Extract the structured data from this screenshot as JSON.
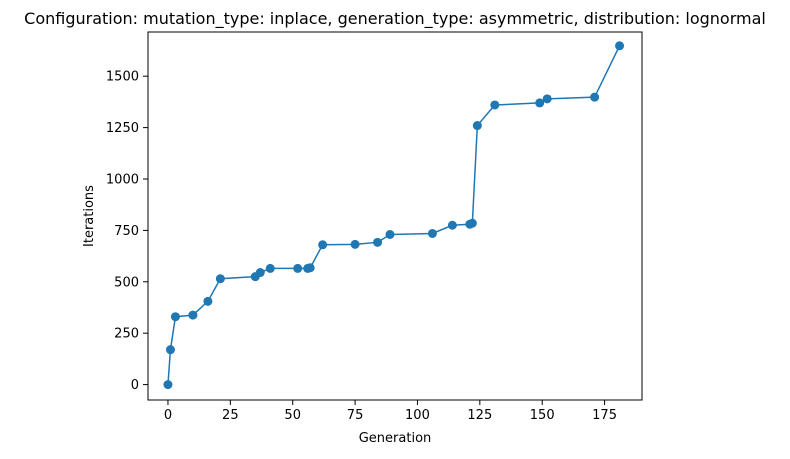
{
  "chart_data": {
    "type": "line",
    "title": "Configuration: mutation_type: inplace, generation_type: asymmetric, distribution: lognormal",
    "xlabel": "Generation",
    "ylabel": "Iterations",
    "xlim": [
      -8,
      190
    ],
    "ylim": [
      -75,
      1715
    ],
    "x_ticks": [
      0,
      25,
      50,
      75,
      100,
      125,
      150,
      175
    ],
    "y_ticks": [
      0,
      250,
      500,
      750,
      1000,
      1250,
      1500
    ],
    "grid": false,
    "legend": "none",
    "series": [
      {
        "color": "#1f77b4",
        "marker": "circle",
        "x": [
          0,
          1,
          3,
          10,
          16,
          21,
          35,
          37,
          41,
          52,
          56,
          57,
          62,
          75,
          84,
          89,
          106,
          114,
          121,
          122,
          124,
          131,
          149,
          152,
          171,
          181
        ],
        "y": [
          0,
          170,
          330,
          338,
          405,
          515,
          525,
          545,
          565,
          565,
          565,
          568,
          680,
          682,
          692,
          730,
          735,
          775,
          780,
          785,
          1260,
          1360,
          1370,
          1390,
          1398,
          1648
        ]
      }
    ]
  }
}
